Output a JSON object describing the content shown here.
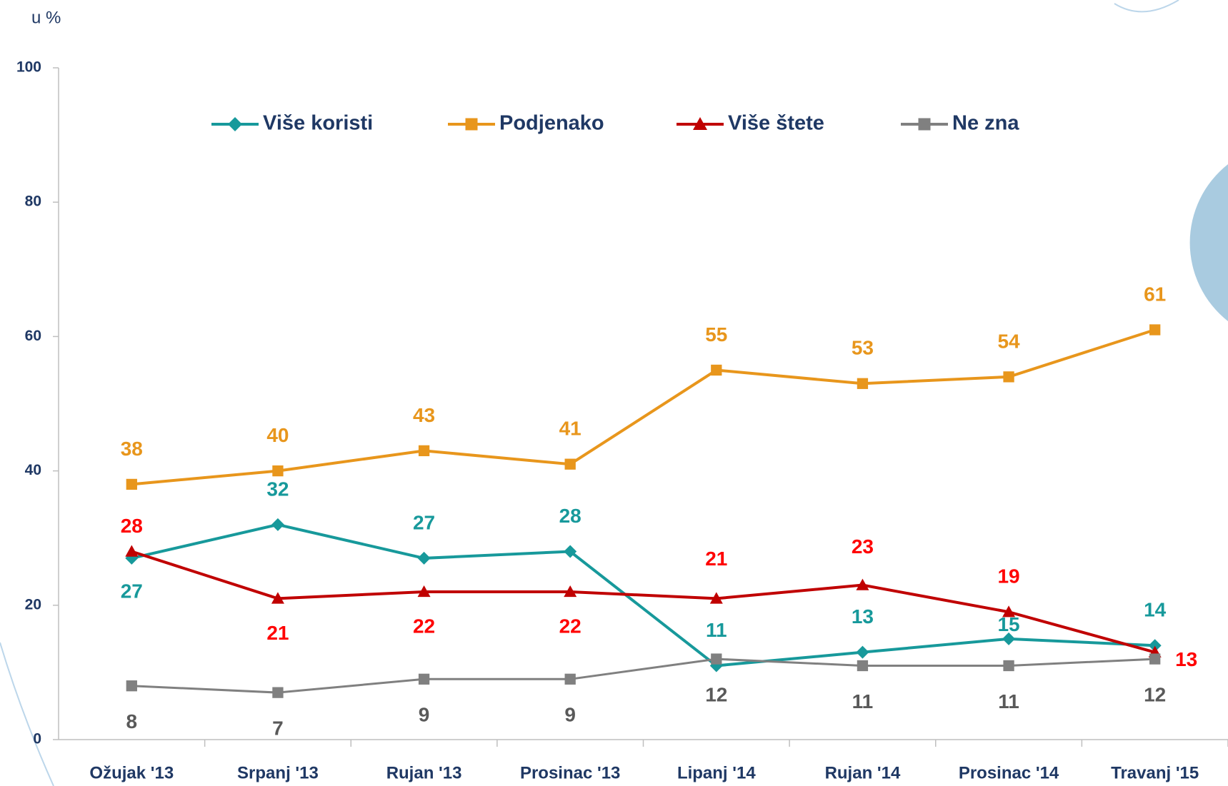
{
  "chart_data": {
    "type": "line",
    "y_label": "u %",
    "categories": [
      "Ožujak '13",
      "Srpanj '13",
      "Rujan '13",
      "Prosinac '13",
      "Lipanj '14",
      "Rujan '14",
      "Prosinac '14",
      "Travanj '15"
    ],
    "series": [
      {
        "name": "Više koristi",
        "color": "#17999b",
        "label_color": "#17999b",
        "marker": "diamond",
        "values": [
          27,
          32,
          27,
          28,
          11,
          13,
          15,
          14
        ]
      },
      {
        "name": "Podjenako",
        "color": "#e8961c",
        "label_color": "#e8961c",
        "marker": "square",
        "values": [
          38,
          40,
          43,
          41,
          55,
          53,
          54,
          61
        ]
      },
      {
        "name": "Više štete",
        "color": "#c00000",
        "label_color": "#ff0000",
        "marker": "triangle",
        "values": [
          28,
          21,
          22,
          22,
          21,
          23,
          19,
          13
        ]
      },
      {
        "name": "Ne zna",
        "color": "#808080",
        "label_color": "#595959",
        "marker": "square",
        "values": [
          8,
          7,
          9,
          9,
          12,
          11,
          11,
          12
        ]
      }
    ],
    "ylim": [
      0,
      100
    ],
    "yticks": [
      0,
      20,
      40,
      60,
      80,
      100
    ]
  }
}
